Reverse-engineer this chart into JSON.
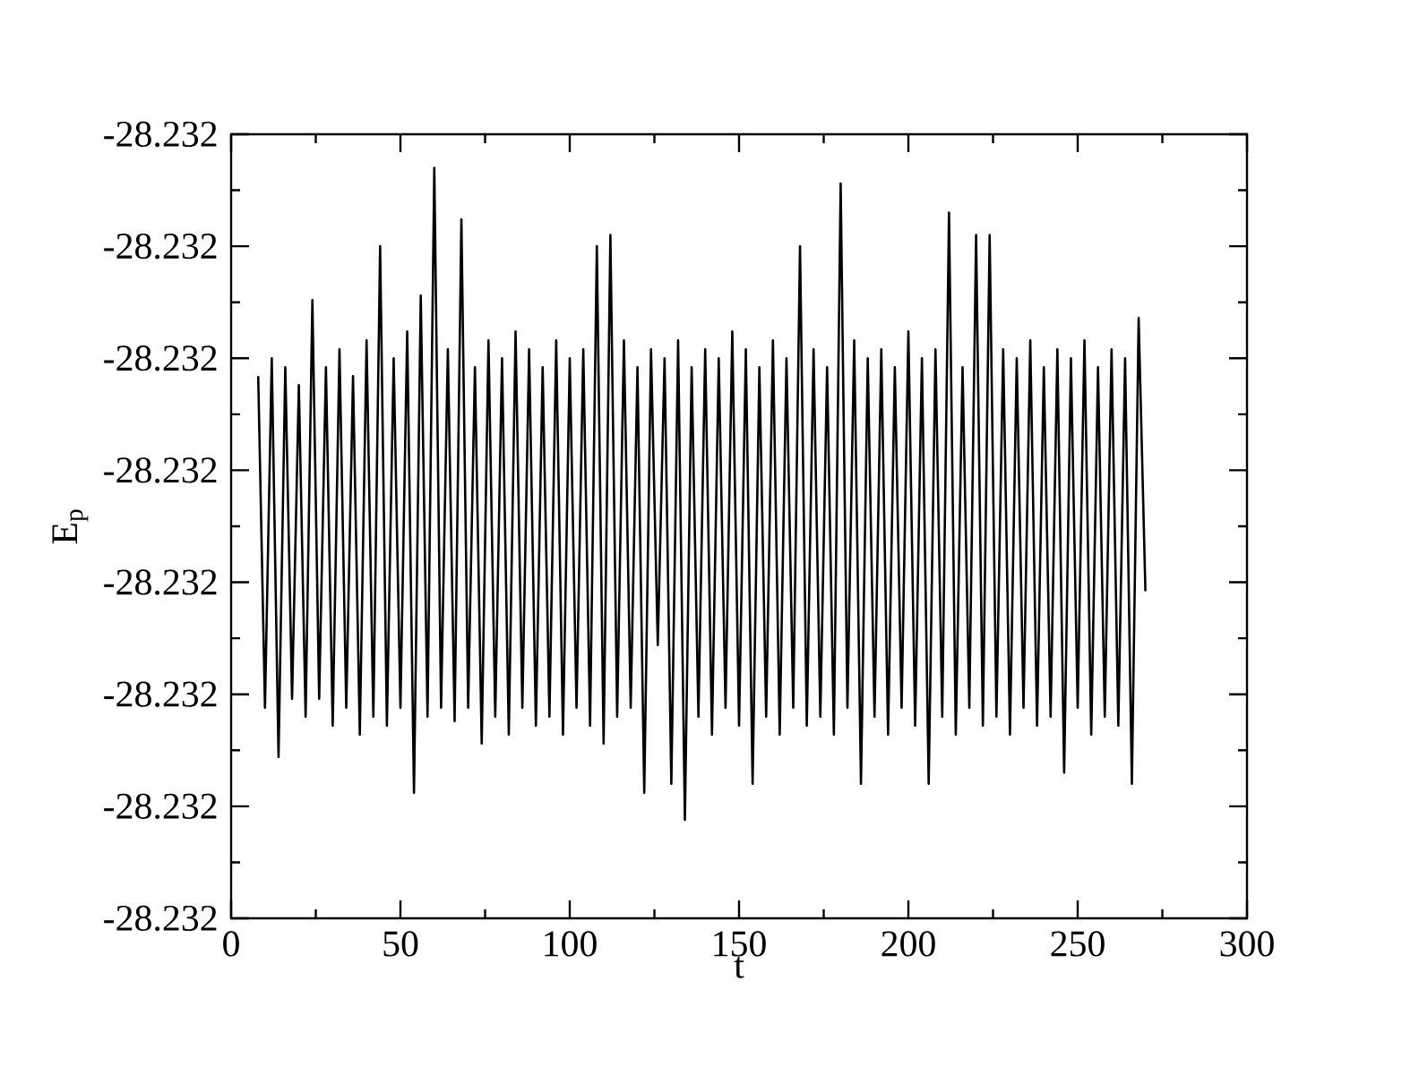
{
  "chart_data": {
    "type": "line",
    "xlabel": "t",
    "ylabel": "E$_{p}$",
    "color": "#000000",
    "xlim": [
      0,
      300
    ],
    "xticks": [
      0,
      50,
      100,
      150,
      200,
      250,
      300
    ],
    "ylim": [
      -28.23245,
      -28.2321
    ],
    "yticks": [
      {
        "value": -28.23245,
        "label": "-28.232"
      },
      {
        "value": -28.2324,
        "label": "-28.232"
      },
      {
        "value": -28.23235,
        "label": "-28.232"
      },
      {
        "value": -28.2323,
        "label": "-28.232"
      },
      {
        "value": -28.23225,
        "label": "-28.232"
      },
      {
        "value": -28.2322,
        "label": "-28.232"
      },
      {
        "value": -28.23215,
        "label": "-28.232"
      },
      {
        "value": -28.2321,
        "label": "-28.232"
      }
    ],
    "x": [
      8,
      10,
      12,
      14,
      16,
      18,
      20,
      22,
      24,
      26,
      28,
      30,
      32,
      34,
      36,
      38,
      40,
      42,
      44,
      46,
      48,
      50,
      52,
      54,
      56,
      58,
      60,
      62,
      64,
      66,
      68,
      70,
      72,
      74,
      76,
      78,
      80,
      82,
      84,
      86,
      88,
      90,
      92,
      94,
      96,
      98,
      100,
      102,
      104,
      106,
      108,
      110,
      112,
      114,
      116,
      118,
      120,
      122,
      124,
      126,
      128,
      130,
      132,
      134,
      136,
      138,
      140,
      142,
      144,
      146,
      148,
      150,
      152,
      154,
      156,
      158,
      160,
      162,
      164,
      166,
      168,
      170,
      172,
      174,
      176,
      178,
      180,
      182,
      184,
      186,
      188,
      190,
      192,
      194,
      196,
      198,
      200,
      202,
      204,
      206,
      208,
      210,
      212,
      214,
      216,
      218,
      220,
      222,
      224,
      226,
      228,
      230,
      232,
      234,
      236,
      238,
      240,
      242,
      244,
      246,
      248,
      250,
      252,
      254,
      256,
      258,
      260,
      262,
      264,
      266,
      268,
      270
    ],
    "values": [
      -28.232208,
      -28.232356,
      -28.2322,
      -28.232378,
      -28.232204,
      -28.232352,
      -28.232212,
      -28.23236,
      -28.232174,
      -28.232352,
      -28.232204,
      -28.232364,
      -28.232196,
      -28.232356,
      -28.232208,
      -28.232368,
      -28.232192,
      -28.23236,
      -28.23215,
      -28.232364,
      -28.2322,
      -28.232356,
      -28.232188,
      -28.232394,
      -28.232172,
      -28.23236,
      -28.232115,
      -28.232356,
      -28.232196,
      -28.232362,
      -28.232138,
      -28.232356,
      -28.232204,
      -28.232372,
      -28.232192,
      -28.23236,
      -28.2322,
      -28.232368,
      -28.232188,
      -28.232356,
      -28.232196,
      -28.232364,
      -28.232204,
      -28.23236,
      -28.232192,
      -28.232368,
      -28.2322,
      -28.232356,
      -28.232196,
      -28.232364,
      -28.23215,
      -28.232372,
      -28.232145,
      -28.23236,
      -28.232192,
      -28.232356,
      -28.232204,
      -28.232394,
      -28.232196,
      -28.232328,
      -28.2322,
      -28.23239,
      -28.232192,
      -28.232406,
      -28.232204,
      -28.23236,
      -28.232196,
      -28.232368,
      -28.2322,
      -28.232356,
      -28.232188,
      -28.232364,
      -28.232196,
      -28.23239,
      -28.232204,
      -28.23236,
      -28.232192,
      -28.232368,
      -28.2322,
      -28.232356,
      -28.23215,
      -28.232364,
      -28.232196,
      -28.23236,
      -28.232204,
      -28.232368,
      -28.232122,
      -28.232356,
      -28.232192,
      -28.23239,
      -28.2322,
      -28.23236,
      -28.232196,
      -28.232368,
      -28.232204,
      -28.232356,
      -28.232188,
      -28.232364,
      -28.2322,
      -28.23239,
      -28.232196,
      -28.23236,
      -28.232135,
      -28.232368,
      -28.232204,
      -28.232356,
      -28.232145,
      -28.232364,
      -28.232145,
      -28.23236,
      -28.232196,
      -28.232368,
      -28.2322,
      -28.232356,
      -28.232192,
      -28.232364,
      -28.232204,
      -28.23236,
      -28.232196,
      -28.232385,
      -28.2322,
      -28.232356,
      -28.232192,
      -28.232368,
      -28.232204,
      -28.23236,
      -28.232196,
      -28.232364,
      -28.2322,
      -28.23239,
      -28.232182,
      -28.232304
    ]
  }
}
